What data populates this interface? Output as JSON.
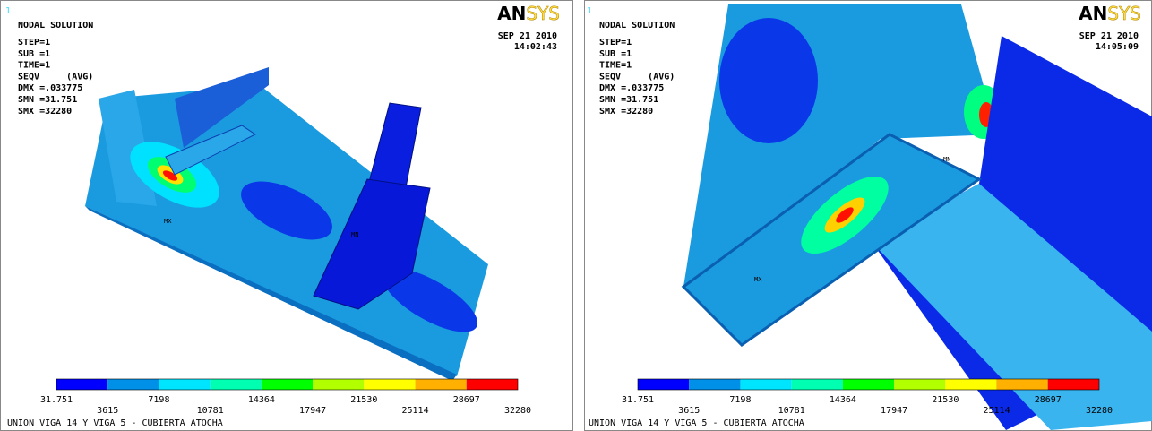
{
  "panels": [
    {
      "corner_mark": "1",
      "title": "NODAL SOLUTION",
      "info": [
        "STEP=1",
        "SUB =1",
        "TIME=1",
        "SEQV     (AVG)",
        "DMX =.033775",
        "SMN =31.751",
        "SMX =32280"
      ],
      "logo": {
        "bold": "AN",
        "light": "SYS"
      },
      "date": "SEP 21 2010",
      "time": "14:02:43",
      "model_labels": [
        "MX",
        "MN"
      ],
      "legend": [
        "31.751",
        "3615",
        "7198",
        "10781",
        "14364",
        "17947",
        "21530",
        "25114",
        "28697",
        "32280"
      ],
      "caption": "UNION VIGA 14 Y VIGA 5 - CUBIERTA ATOCHA"
    },
    {
      "corner_mark": "1",
      "title": "NODAL SOLUTION",
      "info": [
        "STEP=1",
        "SUB =1",
        "TIME=1",
        "SEQV     (AVG)",
        "DMX =.033775",
        "SMN =31.751",
        "SMX =32280"
      ],
      "logo": {
        "bold": "AN",
        "light": "SYS"
      },
      "date": "SEP 21 2010",
      "time": "14:05:09",
      "model_labels": [
        "MX",
        "MN"
      ],
      "legend": [
        "31.751",
        "3615",
        "7198",
        "10781",
        "14364",
        "17947",
        "21530",
        "25114",
        "28697",
        "32280"
      ],
      "caption": "UNION VIGA 14 Y VIGA 5 - CUBIERTA ATOCHA"
    }
  ],
  "legend_colors": [
    "#0000ff",
    "#0090e8",
    "#00e5ff",
    "#00ffb0",
    "#00ff00",
    "#b2ff00",
    "#ffff00",
    "#ffb000",
    "#ff0000"
  ]
}
